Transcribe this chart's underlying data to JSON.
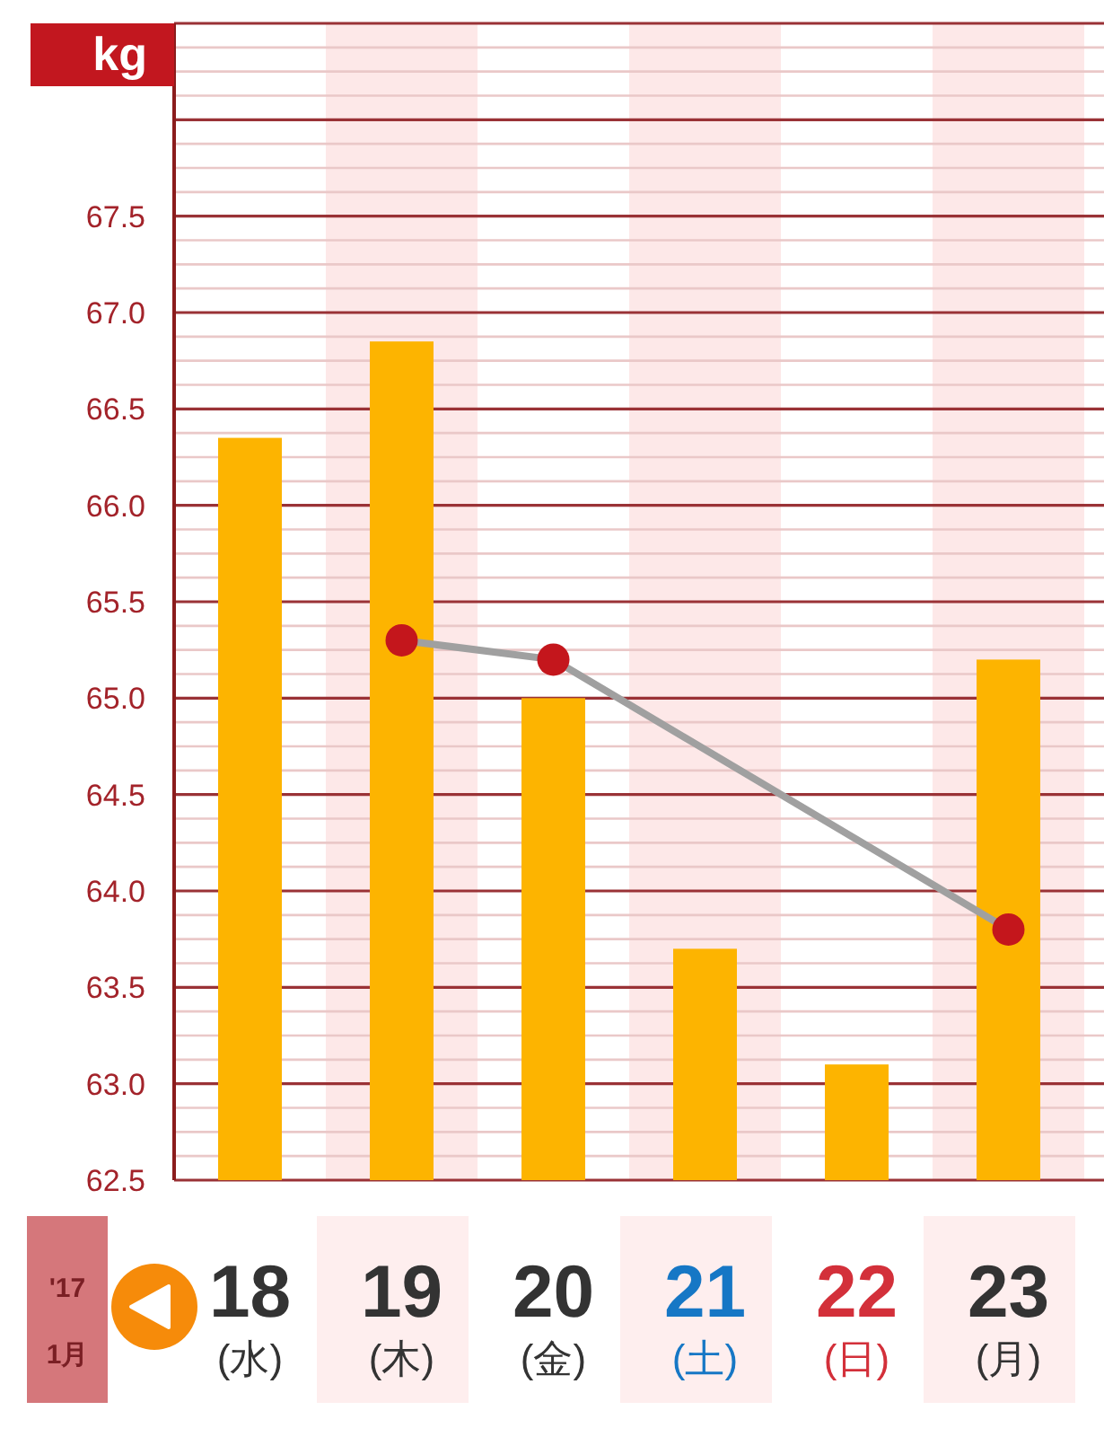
{
  "chart_data": {
    "type": "bar",
    "ylabel": "kg",
    "xlabel": "'17\n1月",
    "categories": [
      "18\n(水)",
      "19\n(木)",
      "20\n(金)",
      "21\n(土)",
      "22\n(日)",
      "23\n(月)"
    ],
    "series": [
      {
        "color": "#fdb400",
        "values": [
          66.35,
          66.85,
          65.0,
          63.7,
          63.1,
          65.2
        ]
      },
      {
        "type": "line",
        "color": "#a0a0a0",
        "colors": [
          "#c4161c",
          "#c4161c",
          "#c4161c"
        ],
        "x": [
          "19\n(木)",
          "20\n(金)",
          "23\n(月)"
        ],
        "values": [
          65.3,
          65.2,
          63.8
        ]
      }
    ],
    "ylim": [
      62.5,
      68.5
    ],
    "yticks": [
      62.5,
      {
        "value": 63,
        "label": "63.0"
      },
      63.5,
      {
        "value": 64,
        "label": "64.0"
      },
      64.5,
      {
        "value": 65,
        "label": "65.0"
      },
      65.5,
      {
        "value": 66,
        "label": "66.0"
      },
      66.5,
      {
        "value": 67,
        "label": "67.0"
      },
      67.5,
      {
        "value": 68,
        "label": null
      },
      {
        "value": 68.5,
        "label": null
      }
    ],
    "grid": "y",
    "marker": "circle",
    "bands": [
      {
        "axis": "x",
        "from": "19\n(木)",
        "to": "19\n(木)",
        "color": "#fde8e8"
      },
      {
        "axis": "x",
        "from": "21\n(土)",
        "to": "21\n(土)",
        "color": "#fde8e8"
      },
      {
        "axis": "x",
        "from": "23\n(月)",
        "to": "23\n(月)",
        "color": "#fde8e8"
      }
    ]
  }
}
